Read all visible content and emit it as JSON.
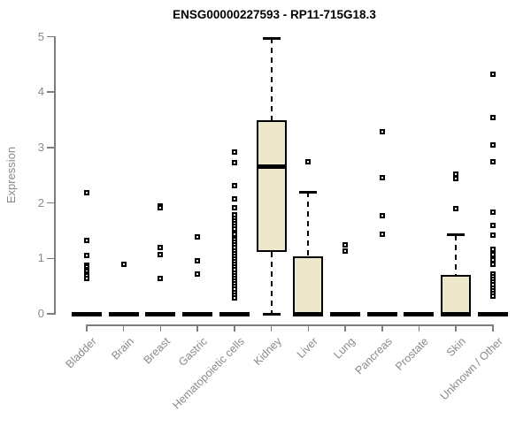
{
  "chart_data": {
    "type": "boxplot",
    "title": "ENSG00000227593 - RP11-715G18.3",
    "ylabel": "Expression",
    "xlabel": "",
    "ylim": [
      0,
      5
    ],
    "yticks": [
      0,
      1,
      2,
      3,
      4,
      5
    ],
    "grid": "off",
    "legend": "none",
    "colors": {
      "box_fill": "#EDE7CC",
      "box_border": "#000000",
      "median": "#000000",
      "axis": "#7e7e7e",
      "tick_label": "#8a8a8a",
      "title": "#000000"
    },
    "categories": [
      "Bladder",
      "Brain",
      "Breast",
      "Gastric",
      "Hematopoietic cells",
      "Kidney",
      "Liver",
      "Lung",
      "Pancreas",
      "Prostate",
      "Skin",
      "Unknown / Other"
    ],
    "series": [
      {
        "category": "Bladder",
        "q1": 0,
        "median": 0,
        "q3": 0,
        "whisker_low": 0,
        "whisker_high": 0,
        "outliers": [
          2.19,
          1.32,
          1.06,
          0.88,
          0.84,
          0.8,
          0.76,
          0.72,
          0.68,
          0.64
        ]
      },
      {
        "category": "Brain",
        "q1": 0,
        "median": 0,
        "q3": 0,
        "whisker_low": 0,
        "whisker_high": 0,
        "outliers": [
          0.89
        ]
      },
      {
        "category": "Breast",
        "q1": 0,
        "median": 0,
        "q3": 0,
        "whisker_low": 0,
        "whisker_high": 0,
        "outliers": [
          1.95,
          1.91,
          1.2,
          1.07,
          0.63
        ]
      },
      {
        "category": "Gastric",
        "q1": 0,
        "median": 0,
        "q3": 0,
        "whisker_low": 0,
        "whisker_high": 0,
        "outliers": [
          1.38,
          0.96,
          0.72
        ]
      },
      {
        "category": "Hematopoietic cells",
        "q1": 0,
        "median": 0,
        "q3": 0,
        "whisker_low": 0,
        "whisker_high": 0,
        "outliers": [
          2.92,
          2.73,
          2.32,
          2.07,
          1.91,
          1.78,
          1.73,
          1.68,
          1.63,
          1.58,
          1.53,
          1.43,
          1.34,
          1.29,
          1.24,
          1.19,
          1.14,
          1.09,
          1.04,
          0.99,
          0.94,
          0.89,
          0.84,
          0.79,
          0.74,
          0.69,
          0.64,
          0.59,
          0.54,
          0.49,
          0.44,
          0.39,
          0.34,
          0.29
        ]
      },
      {
        "category": "Kidney",
        "q1": 1.12,
        "median": 2.65,
        "q3": 3.5,
        "whisker_low": 0,
        "whisker_high": 4.97,
        "outliers": []
      },
      {
        "category": "Liver",
        "q1": 0,
        "median": 0,
        "q3": 1.04,
        "whisker_low": 0,
        "whisker_high": 2.2,
        "outliers": [
          2.75
        ]
      },
      {
        "category": "Lung",
        "q1": 0,
        "median": 0,
        "q3": 0,
        "whisker_low": 0,
        "whisker_high": 0,
        "outliers": [
          1.25,
          1.13
        ]
      },
      {
        "category": "Pancreas",
        "q1": 0,
        "median": 0,
        "q3": 0,
        "whisker_low": 0,
        "whisker_high": 0,
        "outliers": [
          3.28,
          2.46,
          1.77,
          1.43
        ]
      },
      {
        "category": "Prostate",
        "q1": 0,
        "median": 0,
        "q3": 0,
        "whisker_low": 0,
        "whisker_high": 0,
        "outliers": []
      },
      {
        "category": "Skin",
        "q1": 0,
        "median": 0,
        "q3": 0.7,
        "whisker_low": 0,
        "whisker_high": 1.42,
        "outliers": [
          2.52,
          2.44,
          1.9
        ]
      },
      {
        "category": "Unknown / Other",
        "q1": 0,
        "median": 0,
        "q3": 0,
        "whisker_low": 0,
        "whisker_high": 0,
        "outliers": [
          4.33,
          3.54,
          3.04,
          2.74,
          1.83,
          1.6,
          1.42,
          1.17,
          1.07,
          0.97,
          0.9,
          0.72,
          0.67,
          0.62,
          0.57,
          0.52,
          0.47,
          0.42,
          0.37,
          0.32
        ]
      }
    ]
  }
}
